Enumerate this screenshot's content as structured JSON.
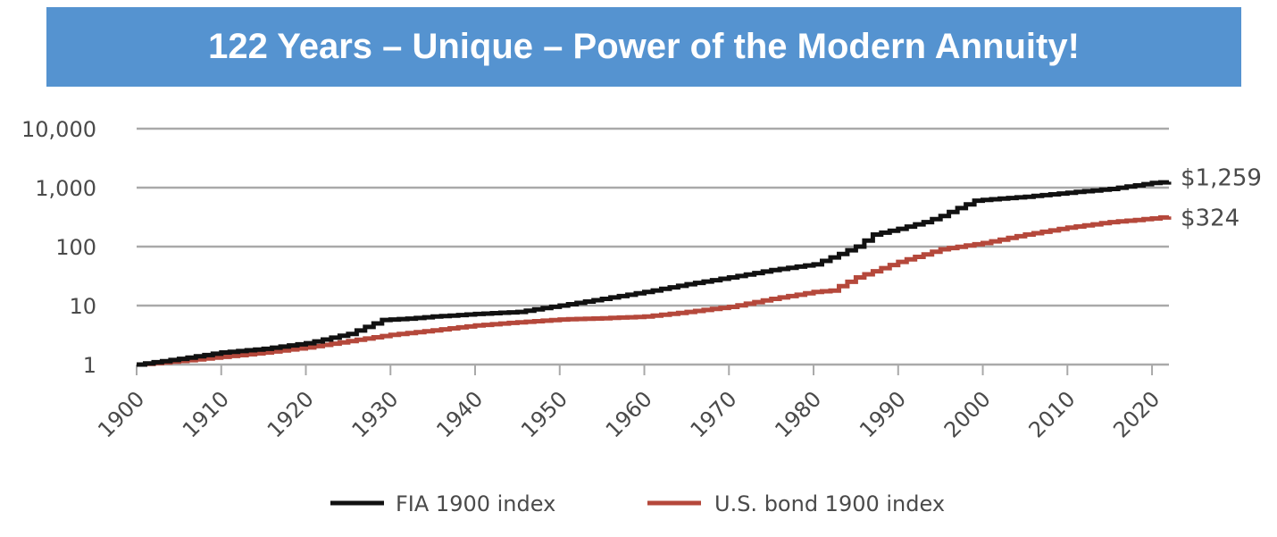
{
  "title": "122 Years – Unique – Power of the Modern Annuity!",
  "chart_data": {
    "type": "line",
    "yscale": "log",
    "ylim": [
      1,
      10000
    ],
    "xlim": [
      1900,
      2022
    ],
    "yticks": [
      1,
      10,
      100,
      1000,
      10000
    ],
    "ytick_labels": [
      "1",
      "10",
      "100",
      "1,000",
      "10,000"
    ],
    "xticks": [
      1900,
      1910,
      1920,
      1930,
      1940,
      1950,
      1960,
      1970,
      1980,
      1990,
      2000,
      2010,
      2020
    ],
    "xtick_labels": [
      "1900",
      "1910",
      "1920",
      "1930",
      "1940",
      "1950",
      "1960",
      "1970",
      "1980",
      "1990",
      "2000",
      "2010",
      "2020"
    ],
    "grid": "horizontal",
    "legend_position": "bottom",
    "series": [
      {
        "name": "FIA 1900 index",
        "color": "#111111",
        "end_label": "$1,259",
        "x": [
          1900,
          1905,
          1910,
          1915,
          1920,
          1925,
          1929,
          1932,
          1935,
          1940,
          1945,
          1950,
          1955,
          1960,
          1965,
          1970,
          1975,
          1980,
          1983,
          1985,
          1987,
          1990,
          1993,
          1995,
          1997,
          1999,
          2000,
          2005,
          2010,
          2015,
          2020,
          2022
        ],
        "values": [
          1,
          1.25,
          1.6,
          1.85,
          2.3,
          3.3,
          5.7,
          6,
          6.5,
          7.2,
          7.8,
          10,
          13,
          17,
          23,
          30,
          40,
          50,
          75,
          100,
          160,
          200,
          260,
          330,
          450,
          600,
          620,
          700,
          820,
          950,
          1200,
          1259
        ]
      },
      {
        "name": "U.S. bond 1900 index",
        "color": "#b5483b",
        "end_label": "$324",
        "x": [
          1900,
          1905,
          1910,
          1915,
          1920,
          1925,
          1930,
          1935,
          1940,
          1945,
          1950,
          1955,
          1960,
          1965,
          1970,
          1975,
          1980,
          1982,
          1985,
          1990,
          1995,
          2000,
          2005,
          2010,
          2015,
          2020,
          2022
        ],
        "values": [
          1,
          1.15,
          1.35,
          1.6,
          1.95,
          2.5,
          3.2,
          3.8,
          4.6,
          5.2,
          5.8,
          6.1,
          6.5,
          7.8,
          9.5,
          13,
          17,
          18,
          30,
          55,
          90,
          115,
          160,
          210,
          260,
          300,
          324
        ]
      }
    ]
  }
}
